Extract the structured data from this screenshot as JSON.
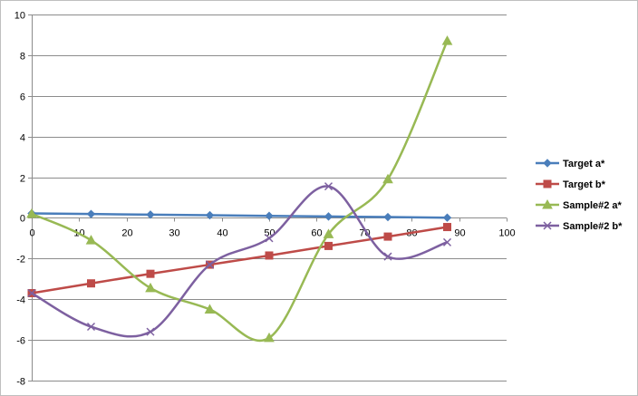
{
  "chart_data": {
    "type": "line",
    "title": "",
    "xlabel": "",
    "ylabel": "",
    "xlim": [
      0,
      100
    ],
    "ylim": [
      -8,
      10
    ],
    "x_ticks": [
      "0",
      "10",
      "20",
      "30",
      "40",
      "50",
      "60",
      "70",
      "80",
      "90",
      "100"
    ],
    "y_ticks": [
      "10",
      "8",
      "6",
      "4",
      "2",
      "0",
      "-2",
      "-4",
      "-6",
      "-8"
    ],
    "grid": "horizontal",
    "legend_position": "right",
    "series": [
      {
        "name": "Target a*",
        "color": "#4a7ebb",
        "marker": "diamond",
        "smooth": false,
        "points": [
          [
            0,
            0.22
          ],
          [
            12.5,
            0.19
          ],
          [
            25,
            0.16
          ],
          [
            37.5,
            0.13
          ],
          [
            50,
            0.1
          ],
          [
            62.5,
            0.07
          ],
          [
            75,
            0.04
          ],
          [
            87.5,
            0.01
          ]
        ]
      },
      {
        "name": "Target b*",
        "color": "#be4b48",
        "marker": "square",
        "smooth": false,
        "points": [
          [
            0,
            -3.7
          ],
          [
            12.5,
            -3.22
          ],
          [
            25,
            -2.75
          ],
          [
            37.5,
            -2.3
          ],
          [
            50,
            -1.85
          ],
          [
            62.5,
            -1.38
          ],
          [
            75,
            -0.92
          ],
          [
            87.5,
            -0.45
          ]
        ]
      },
      {
        "name": "Sample#2 a*",
        "color": "#98b954",
        "marker": "triangle",
        "smooth": true,
        "points": [
          [
            0,
            0.2
          ],
          [
            12.5,
            -1.1
          ],
          [
            25,
            -3.45
          ],
          [
            37.5,
            -4.5
          ],
          [
            50,
            -5.9
          ],
          [
            62.5,
            -0.8
          ],
          [
            75,
            1.9
          ],
          [
            87.5,
            8.7
          ]
        ]
      },
      {
        "name": "Sample#2 b*",
        "color": "#7d60a0",
        "marker": "x",
        "smooth": true,
        "points": [
          [
            0,
            -3.7
          ],
          [
            12.5,
            -5.35
          ],
          [
            25,
            -5.6
          ],
          [
            37.5,
            -2.3
          ],
          [
            50,
            -1.0
          ],
          [
            62.5,
            1.55
          ],
          [
            75,
            -1.9
          ],
          [
            87.5,
            -1.2
          ]
        ]
      }
    ]
  }
}
